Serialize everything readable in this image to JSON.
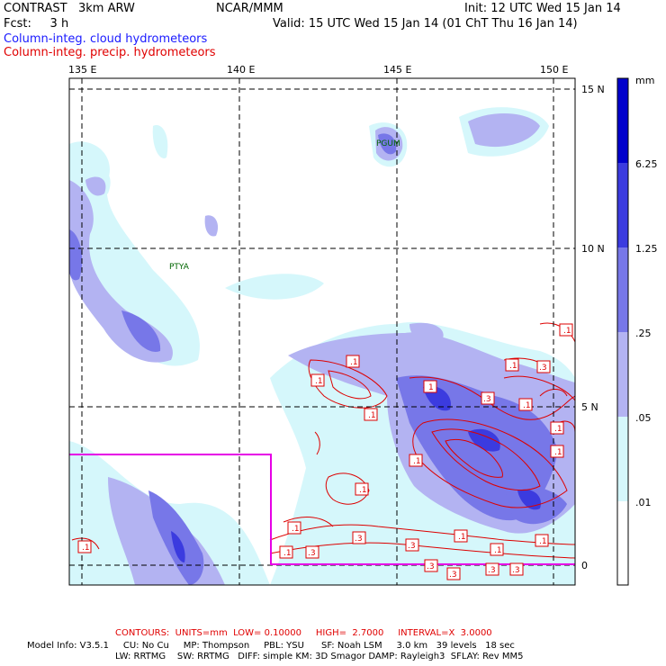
{
  "header": {
    "project": "CONTRAST",
    "model": "3km ARW",
    "org": "NCAR/MMM",
    "init": "Init: 12 UTC Wed 15 Jan 14",
    "fcst_label": "Fcst:",
    "fcst_value": "3 h",
    "valid": "Valid: 15 UTC Wed 15 Jan 14 (01 ChT Thu 16 Jan 14)",
    "field1": "Column-integ. cloud hydrometeors",
    "field2": "Column-integ. precip. hydrometeors"
  },
  "axes": {
    "lon_labels": [
      "135 E",
      "140 E",
      "145 E",
      "150 E"
    ],
    "lat_labels": [
      "15 N",
      "10 N",
      "5 N",
      "0"
    ]
  },
  "stations": [
    "PGUM",
    "PTYA"
  ],
  "legend": {
    "unit": "mm",
    "levels": [
      "6.25",
      "1.25",
      ".25",
      ".05",
      ".01"
    ],
    "colors": [
      "#0000cc",
      "#3b3bdf",
      "#7777e8",
      "#b3b3f2",
      "#d5f7fb",
      "#ffffff"
    ]
  },
  "contour_labels": [
    ".1",
    ".3",
    "1"
  ],
  "footer": {
    "contours": "CONTOURS:  UNITS=mm  LOW= 0.10000     HIGH=  2.7000     INTERVAL=X  3.0000",
    "line1": "Model Info: V3.5.1     CU: No Cu     MP: Thompson     PBL: YSU      SF: Noah LSM     3.0 km   39 levels   18 sec",
    "line2": "LW: RRTMG    SW: RRTMG   DIFF: simple KM: 3D Smagor DAMP: Rayleigh3  SFLAY: Rev MM5"
  }
}
